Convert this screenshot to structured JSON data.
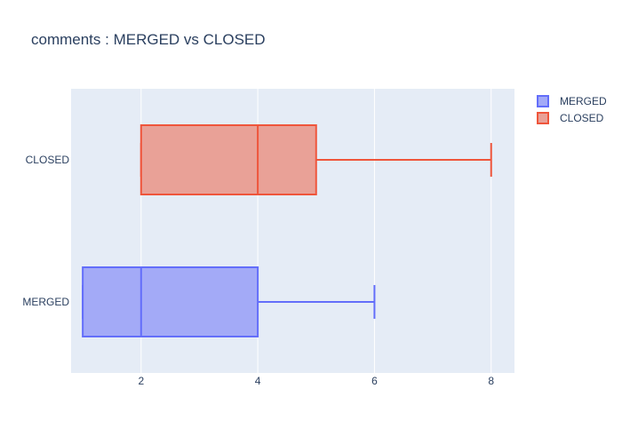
{
  "chart_data": {
    "type": "box",
    "orientation": "horizontal",
    "title": "comments : MERGED vs CLOSED",
    "xlim": [
      0.8,
      8.4
    ],
    "x_ticks": [
      2,
      4,
      6,
      8
    ],
    "grid": true,
    "legend": "top-right",
    "series": [
      {
        "name": "MERGED",
        "color": "#636efa",
        "fill": "#a3aaf7",
        "min": 1,
        "q1": 1,
        "median": 2,
        "q3": 4,
        "max": 6
      },
      {
        "name": "CLOSED",
        "color": "#ef553b",
        "fill": "#e9a197",
        "min": 2,
        "q1": 2,
        "median": 4,
        "q3": 5,
        "max": 8
      }
    ]
  },
  "colors": {
    "plot_background": "#e5ecf6",
    "gridline": "#ffffff",
    "text": "#2a3f5f"
  }
}
